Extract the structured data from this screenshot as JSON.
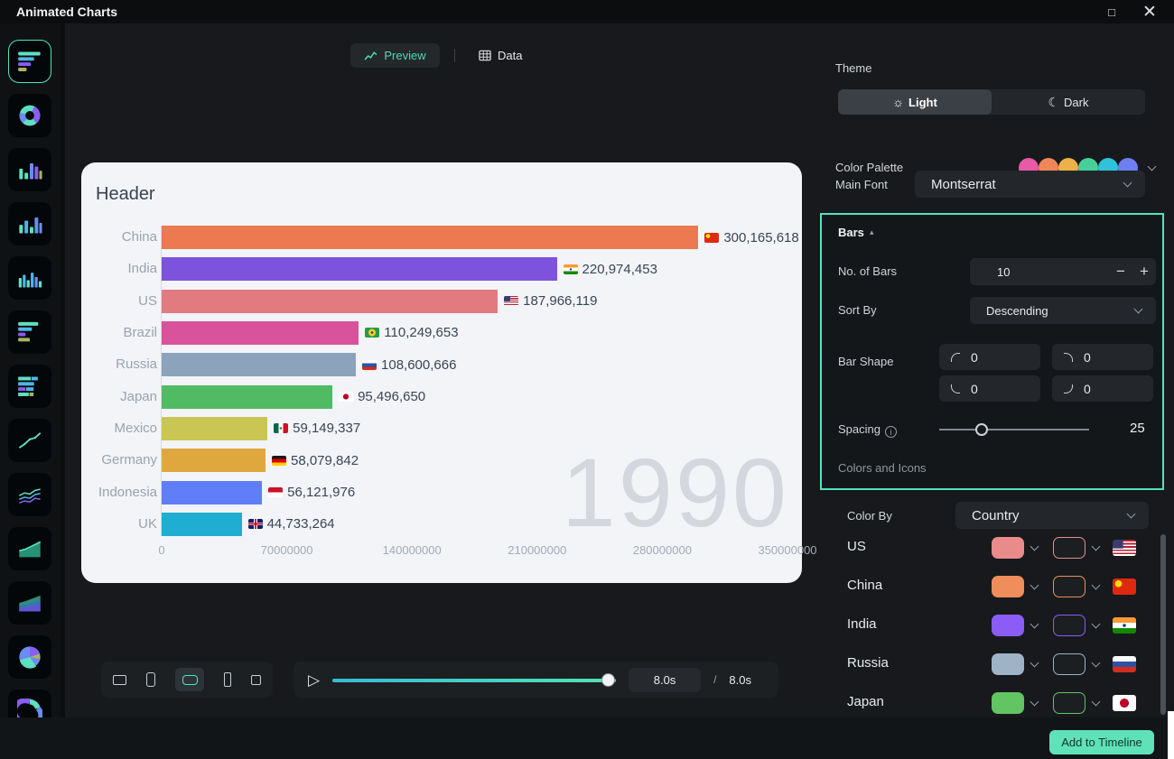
{
  "window": {
    "title": "Animated Charts"
  },
  "sidebar": {
    "items": [
      {
        "id": "horizontal-bar-race",
        "selected": true
      },
      {
        "id": "donut-chart",
        "selected": false
      },
      {
        "id": "vertical-bar-chart-1",
        "selected": false
      },
      {
        "id": "vertical-bar-chart-2",
        "selected": false
      },
      {
        "id": "vertical-bar-chart-3",
        "selected": false
      },
      {
        "id": "horizontal-bar-chart-1",
        "selected": false
      },
      {
        "id": "horizontal-bar-chart-2",
        "selected": false
      },
      {
        "id": "line-chart",
        "selected": false
      },
      {
        "id": "multi-line-chart",
        "selected": false
      },
      {
        "id": "area-chart",
        "selected": false
      },
      {
        "id": "stacked-area-chart",
        "selected": false
      },
      {
        "id": "pie-chart",
        "selected": false
      },
      {
        "id": "half-donut-chart",
        "selected": false
      }
    ]
  },
  "tabs": {
    "preview": "Preview",
    "data": "Data"
  },
  "preview": {
    "header": "Header",
    "year": "1990"
  },
  "chart_data": {
    "type": "bar",
    "orientation": "horizontal",
    "title": "Header",
    "categories": [
      "China",
      "India",
      "US",
      "Brazil",
      "Russia",
      "Japan",
      "Mexico",
      "Germany",
      "Indonesia",
      "UK"
    ],
    "values": [
      300165618,
      220974453,
      187966119,
      110249653,
      108600666,
      95496650,
      59149337,
      58079842,
      56121976,
      44733264
    ],
    "value_labels": [
      "300,165,618",
      "220,974,453",
      "187,966,119",
      "110,249,653",
      "108,600,666",
      "95,496,650",
      "59,149,337",
      "58,079,842",
      "56,121,976",
      "44,733,264"
    ],
    "bar_colors": [
      "#ec7950",
      "#7d52dd",
      "#e17b80",
      "#d8539b",
      "#8ba3bb",
      "#51bb63",
      "#c9c653",
      "#dfa83f",
      "#5f7ef7",
      "#1fadd1"
    ],
    "flags": [
      "cn",
      "in",
      "us",
      "br",
      "ru",
      "jp",
      "mx",
      "de",
      "id",
      "gb"
    ],
    "x_ticks": [
      "0",
      "70000000",
      "140000000",
      "210000000",
      "280000000",
      "350000000"
    ],
    "xlim": [
      0,
      350000000
    ],
    "year_annotation": "1990",
    "grid": false,
    "legend": false
  },
  "aspect_options": {
    "ratios": [
      "16:9",
      "9:16",
      "21:9",
      "4:5",
      "1:1"
    ],
    "selected_index": 2
  },
  "player": {
    "current_time": "8.0s",
    "separator": "/",
    "total_time": "8.0s"
  },
  "panel": {
    "theme": {
      "label": "Theme",
      "light": "Light",
      "dark": "Dark",
      "selected": "light"
    },
    "palette": {
      "label": "Color Palette",
      "colors": [
        "#e859a8",
        "#ef8657",
        "#ecb14b",
        "#47cf9a",
        "#2fc2d8",
        "#6f7ff2"
      ]
    },
    "font": {
      "label": "Main Font",
      "value": "Montserrat"
    },
    "bars": {
      "title": "Bars",
      "highlight_color": "#4fe3c1",
      "no_of_bars": {
        "label": "No. of Bars",
        "value": "10"
      },
      "sort_by": {
        "label": "Sort By",
        "value": "Descending"
      },
      "bar_shape": {
        "label": "Bar Shape",
        "corners": [
          "0",
          "0",
          "0",
          "0"
        ]
      },
      "spacing": {
        "label": "Spacing",
        "value": "25"
      }
    },
    "colors_icons": {
      "title": "Colors and Icons",
      "color_by": {
        "label": "Color By",
        "value": "Country"
      },
      "rows": [
        {
          "name": "US",
          "color": "#e98b8b",
          "flag": "us"
        },
        {
          "name": "China",
          "color": "#ef8d5b",
          "flag": "cn"
        },
        {
          "name": "India",
          "color": "#8b5cf6",
          "flag": "in"
        },
        {
          "name": "Russia",
          "color": "#9fb3c6",
          "flag": "ru"
        },
        {
          "name": "Japan",
          "color": "#62c462",
          "flag": "jp"
        }
      ]
    }
  },
  "footer": {
    "add_to_timeline": "Add to Timeline"
  }
}
